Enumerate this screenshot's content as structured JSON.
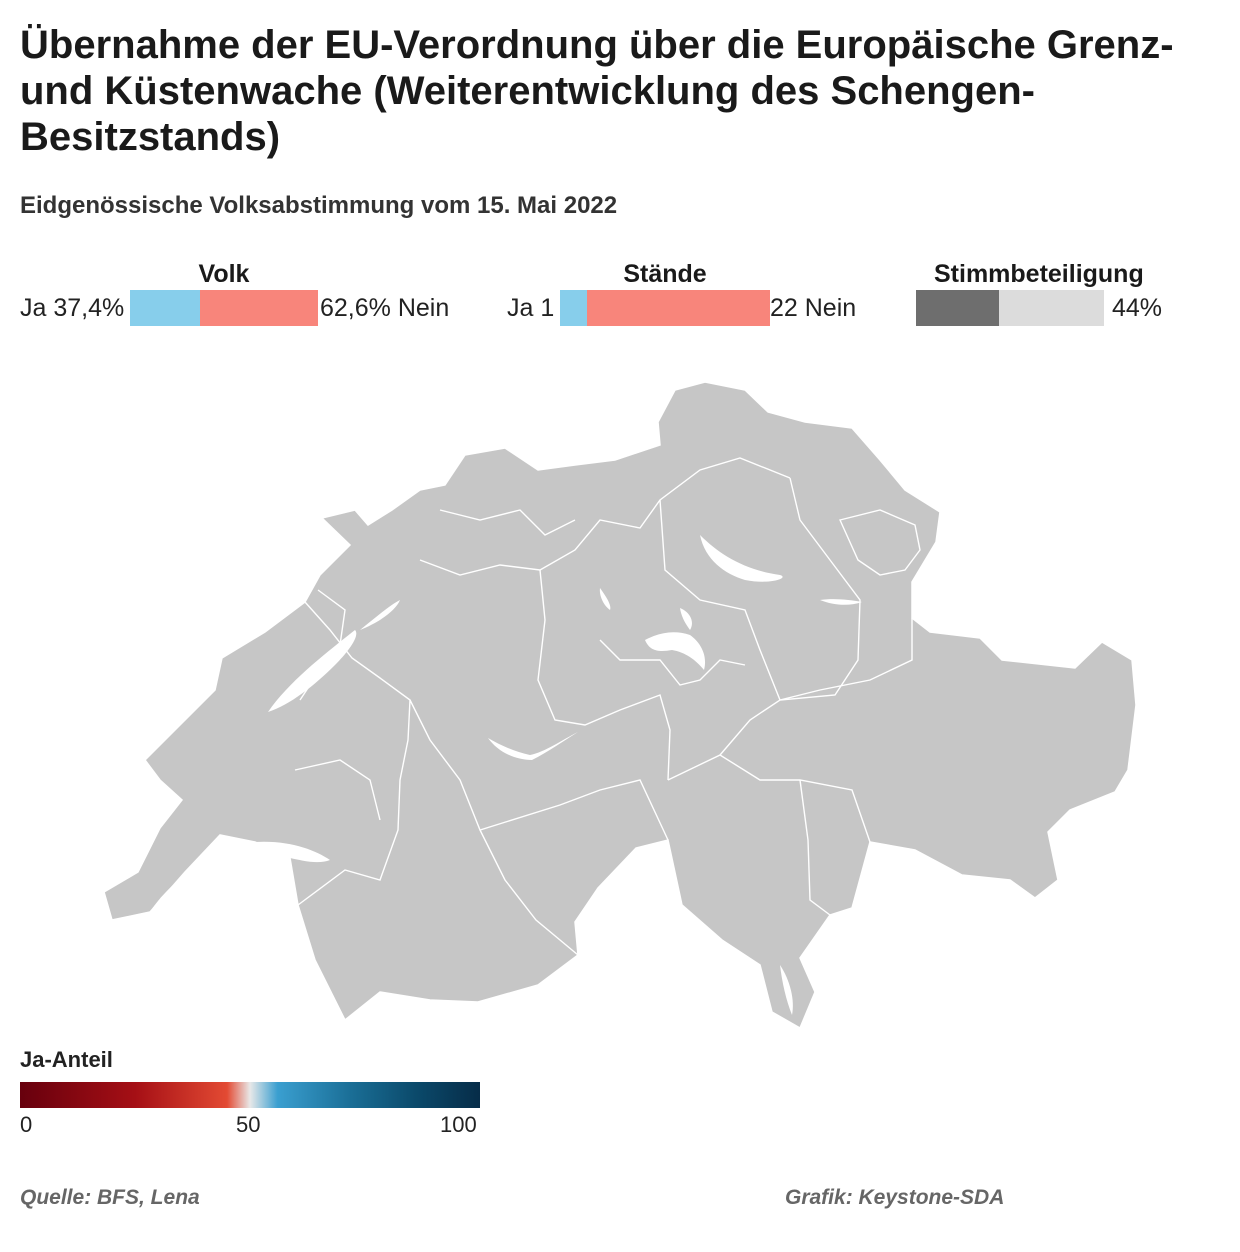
{
  "header": {
    "title": "Übernahme der EU-Verordnung über die Europäische Grenz- und Küstenwache (Weiterentwicklung des Schengen-Besitzstands)",
    "subtitle": "Eidgenössische Volksabstimmung vom 15. Mai 2022"
  },
  "volk": {
    "label": "Volk",
    "ja_text": "Ja 37,4%",
    "nein_text": "62,6% Nein",
    "ja_share": 37.4,
    "nein_share": 62.6,
    "ja_color": "#87ceeb",
    "nein_color": "#f8857b"
  },
  "staende": {
    "label": "Stände",
    "ja_text": "Ja 1",
    "nein_text": "22 Nein",
    "ja_count": 1,
    "nein_count": 22,
    "ja_color": "#87ceeb",
    "nein_color": "#f8857b"
  },
  "stimmbeteiligung": {
    "label": "Stimmbeteiligung",
    "value_text": "44%",
    "value": 44,
    "fill_color": "#6e6e6e",
    "rest_color": "#dcdcdc"
  },
  "map": {
    "fill_color": "#c6c6c6",
    "border_color": "#ffffff",
    "lake_color": "#ffffff"
  },
  "legend": {
    "title": "Ja-Anteil",
    "ticks": [
      "0",
      "50",
      "100"
    ],
    "min": 0,
    "max": 100
  },
  "footer": {
    "source": "Quelle: BFS, Lena",
    "credit": "Grafik: Keystone-SDA"
  }
}
